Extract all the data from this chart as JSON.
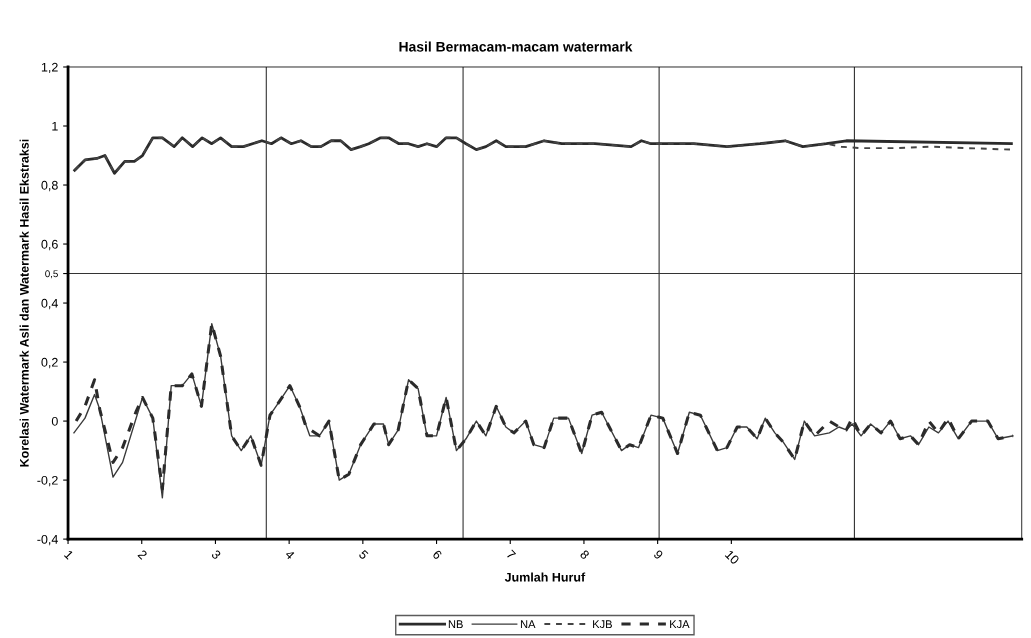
{
  "chart_data": {
    "type": "line",
    "title": "Hasil Bermacam-macam watermark",
    "xlabel": "Jumlah Huruf",
    "ylabel": "Korelasi Watermark Asli dan Watermark Hasil Ekstraksi",
    "xlim": [
      1,
      13.94
    ],
    "xticks": [
      1,
      2,
      3,
      4,
      5,
      6,
      7,
      8,
      9,
      10
    ],
    "ylim": [
      -0.4,
      1.2
    ],
    "yticks": [
      {
        "value": 1.2,
        "label": "1,2"
      },
      1,
      {
        "value": 0.8,
        "label": "0,8"
      },
      {
        "value": 0.6,
        "label": "0,6"
      },
      {
        "value": 0.5,
        "label": "0,5"
      },
      {
        "value": 0.4,
        "label": "0,4"
      },
      {
        "value": 0.2,
        "label": "0,2"
      },
      0,
      {
        "value": -0.2,
        "label": "-0,2"
      },
      {
        "value": -0.4,
        "label": "-0,4"
      }
    ],
    "grid": false,
    "legend": "bottom",
    "marker": "none",
    "ref_lines": [
      {
        "axis": "y",
        "value": 0.5,
        "color": "#333333"
      },
      {
        "axis": "x",
        "value": 3.69,
        "color": "#333333"
      },
      {
        "axis": "x",
        "value": 6.36,
        "color": "#333333"
      },
      {
        "axis": "x",
        "value": 9.02,
        "color": "#333333"
      },
      {
        "axis": "x",
        "value": 11.67,
        "color": "#333333"
      }
    ],
    "series": [
      {
        "name": "NB",
        "color": "#2b2b2b",
        "line_style": "solid",
        "x": [
          1.09,
          1.23,
          1.39,
          1.5,
          1.63,
          1.77,
          1.9,
          2.01,
          2.15,
          2.28,
          2.44,
          2.55,
          2.69,
          2.82,
          2.95,
          3.07,
          3.22,
          3.38,
          3.63,
          3.76,
          3.89,
          4.03,
          4.16,
          4.3,
          4.43,
          4.57,
          4.7,
          4.84,
          4.97,
          5.08,
          5.24,
          5.35,
          5.49,
          5.62,
          5.75,
          5.87,
          6.0,
          6.13,
          6.27,
          6.4,
          6.54,
          6.67,
          6.81,
          6.94,
          7.21,
          7.46,
          7.7,
          8.15,
          8.64,
          8.78,
          8.91,
          9.49,
          9.94,
          10.39,
          10.73,
          10.97,
          11.29,
          11.56,
          13.8
        ],
        "values": [
          0.85,
          0.885,
          0.89,
          0.9,
          0.84,
          0.88,
          0.88,
          0.9,
          0.96,
          0.96,
          0.93,
          0.96,
          0.93,
          0.96,
          0.94,
          0.96,
          0.93,
          0.93,
          0.95,
          0.94,
          0.96,
          0.94,
          0.95,
          0.93,
          0.93,
          0.95,
          0.95,
          0.92,
          0.93,
          0.94,
          0.96,
          0.96,
          0.94,
          0.94,
          0.93,
          0.94,
          0.93,
          0.96,
          0.96,
          0.94,
          0.92,
          0.93,
          0.95,
          0.93,
          0.93,
          0.95,
          0.94,
          0.94,
          0.93,
          0.95,
          0.94,
          0.94,
          0.93,
          0.94,
          0.95,
          0.93,
          0.94,
          0.95,
          0.94
        ]
      },
      {
        "name": "NA",
        "color": "#3a3a3a",
        "line_style": "solid",
        "x": [
          1.08,
          1.23,
          1.36,
          1.43,
          1.61,
          1.74,
          2.01,
          2.15,
          2.28,
          2.4,
          2.55,
          2.68,
          2.81,
          2.95,
          3.07,
          3.22,
          3.35,
          3.48,
          3.62,
          3.74,
          3.85,
          4.01,
          4.14,
          4.28,
          4.41,
          4.54,
          4.68,
          4.81,
          4.97,
          5.15,
          5.28,
          5.35,
          5.48,
          5.62,
          5.75,
          5.87,
          6.0,
          6.13,
          6.27,
          6.4,
          6.54,
          6.67,
          6.81,
          6.94,
          7.05,
          7.21,
          7.32,
          7.46,
          7.59,
          7.79,
          7.97,
          8.11,
          8.24,
          8.51,
          8.62,
          8.74,
          8.91,
          9.07,
          9.27,
          9.43,
          9.58,
          9.81,
          9.94,
          10.08,
          10.21,
          10.35,
          10.46,
          10.59,
          10.7,
          10.86,
          10.99,
          11.13,
          11.33,
          11.46,
          11.56,
          11.64,
          11.76,
          11.89,
          12.03,
          12.16,
          12.29,
          12.43,
          12.54,
          12.68,
          12.81,
          12.94,
          13.08,
          13.26,
          13.48,
          13.62,
          13.82
        ],
        "values": [
          -0.04,
          0.01,
          0.09,
          0.04,
          -0.19,
          -0.14,
          0.08,
          0.01,
          -0.26,
          0.12,
          0.12,
          0.16,
          0.05,
          0.33,
          0.22,
          -0.05,
          -0.1,
          -0.05,
          -0.15,
          0.02,
          0.06,
          0.12,
          0.05,
          -0.05,
          -0.05,
          0.0,
          -0.2,
          -0.18,
          -0.08,
          -0.01,
          -0.01,
          -0.08,
          -0.03,
          0.14,
          0.11,
          -0.05,
          -0.05,
          0.08,
          -0.1,
          -0.06,
          0.0,
          -0.05,
          0.05,
          -0.02,
          -0.04,
          0.0,
          -0.08,
          -0.09,
          0.01,
          0.01,
          -0.11,
          0.02,
          0.03,
          -0.1,
          -0.08,
          -0.09,
          0.02,
          0.01,
          -0.11,
          0.03,
          0.02,
          -0.1,
          -0.09,
          -0.02,
          -0.02,
          -0.06,
          0.01,
          -0.04,
          -0.07,
          -0.13,
          0.0,
          -0.05,
          -0.04,
          -0.02,
          -0.03,
          -0.01,
          -0.05,
          -0.01,
          -0.04,
          0.0,
          -0.06,
          -0.05,
          -0.08,
          -0.02,
          -0.04,
          0.0,
          -0.06,
          0.0,
          0.0,
          -0.06,
          -0.05
        ]
      },
      {
        "name": "KJB",
        "color": "#444444",
        "line_style": "dashed",
        "x": [
          1.09,
          1.23,
          1.39,
          1.5,
          1.63,
          1.77,
          1.9,
          2.01,
          2.15,
          2.28,
          2.44,
          2.55,
          2.69,
          2.82,
          2.95,
          3.07,
          3.22,
          3.38,
          3.63,
          3.76,
          3.89,
          4.03,
          4.16,
          4.3,
          4.43,
          4.57,
          4.7,
          4.84,
          4.97,
          5.08,
          5.24,
          5.35,
          5.49,
          5.62,
          5.75,
          5.87,
          6.0,
          6.13,
          6.27,
          6.4,
          6.54,
          6.67,
          6.81,
          6.94,
          7.21,
          7.46,
          7.7,
          8.15,
          8.64,
          8.78,
          8.91,
          9.49,
          9.94,
          10.39,
          10.73,
          10.97,
          11.29,
          11.49,
          11.74,
          12.2,
          12.7,
          13.2,
          13.8
        ],
        "values": [
          0.85,
          0.885,
          0.89,
          0.9,
          0.84,
          0.88,
          0.88,
          0.9,
          0.96,
          0.96,
          0.93,
          0.96,
          0.93,
          0.96,
          0.94,
          0.96,
          0.93,
          0.93,
          0.95,
          0.94,
          0.96,
          0.94,
          0.95,
          0.93,
          0.93,
          0.95,
          0.95,
          0.92,
          0.93,
          0.94,
          0.96,
          0.96,
          0.94,
          0.94,
          0.93,
          0.94,
          0.93,
          0.96,
          0.96,
          0.94,
          0.92,
          0.93,
          0.95,
          0.93,
          0.93,
          0.95,
          0.94,
          0.94,
          0.93,
          0.95,
          0.94,
          0.94,
          0.93,
          0.94,
          0.95,
          0.93,
          0.94,
          0.93,
          0.925,
          0.925,
          0.93,
          0.925,
          0.92
        ]
      },
      {
        "name": "KJA",
        "color": "#2b2b2b",
        "line_style": "dashed",
        "x": [
          1.11,
          1.23,
          1.36,
          1.43,
          1.61,
          1.74,
          1.92,
          2.01,
          2.15,
          2.28,
          2.4,
          2.55,
          2.68,
          2.81,
          2.95,
          3.07,
          3.22,
          3.35,
          3.48,
          3.62,
          3.74,
          3.85,
          4.01,
          4.14,
          4.23,
          4.41,
          4.54,
          4.68,
          4.81,
          4.97,
          5.15,
          5.28,
          5.35,
          5.48,
          5.62,
          5.75,
          5.87,
          6.0,
          6.13,
          6.27,
          6.4,
          6.54,
          6.67,
          6.81,
          6.94,
          7.05,
          7.21,
          7.32,
          7.46,
          7.59,
          7.79,
          7.97,
          8.11,
          8.24,
          8.51,
          8.62,
          8.74,
          8.91,
          9.07,
          9.27,
          9.43,
          9.58,
          9.81,
          9.94,
          10.08,
          10.21,
          10.35,
          10.46,
          10.59,
          10.7,
          10.86,
          10.99,
          11.13,
          11.33,
          11.46,
          11.56,
          11.64,
          11.76,
          11.89,
          12.03,
          12.16,
          12.29,
          12.43,
          12.54,
          12.68,
          12.81,
          12.94,
          13.08,
          13.26,
          13.48,
          13.62,
          13.82
        ],
        "values": [
          0.0,
          0.05,
          0.14,
          0.04,
          -0.14,
          -0.09,
          0.03,
          0.08,
          0.01,
          -0.23,
          0.12,
          0.12,
          0.16,
          0.05,
          0.33,
          0.22,
          -0.05,
          -0.1,
          -0.05,
          -0.15,
          0.02,
          0.06,
          0.12,
          0.05,
          -0.02,
          -0.05,
          0.0,
          -0.2,
          -0.18,
          -0.08,
          -0.01,
          -0.01,
          -0.08,
          -0.03,
          0.14,
          0.11,
          -0.05,
          -0.05,
          0.08,
          -0.1,
          -0.06,
          0.0,
          -0.05,
          0.05,
          -0.02,
          -0.04,
          0.0,
          -0.08,
          -0.09,
          0.01,
          0.01,
          -0.11,
          0.02,
          0.03,
          -0.1,
          -0.08,
          -0.09,
          0.02,
          0.01,
          -0.11,
          0.03,
          0.02,
          -0.1,
          -0.09,
          -0.02,
          -0.02,
          -0.06,
          0.01,
          -0.04,
          -0.07,
          -0.13,
          0.0,
          -0.05,
          0.0,
          -0.02,
          -0.03,
          0.01,
          -0.05,
          -0.01,
          -0.04,
          0.0,
          -0.06,
          -0.05,
          -0.08,
          0.0,
          -0.04,
          0.01,
          -0.06,
          0.0,
          0.0,
          -0.06,
          -0.05
        ]
      }
    ]
  }
}
